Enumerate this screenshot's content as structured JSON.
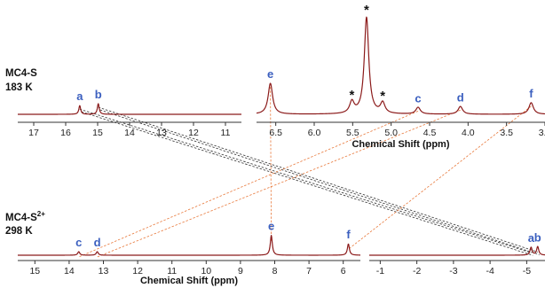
{
  "chart_data": {
    "type": "line",
    "colors": {
      "spectrum": "#8b1a1a",
      "peak_labels": "#3b5fbf",
      "guide_orange": "#e8783a",
      "guide_black": "#333333"
    },
    "xlabel": "Chemical Shift (ppm)",
    "spectra": [
      {
        "id": "mc4s-183",
        "label_main": "MC4-S",
        "label_temp": "183 K",
        "panels": [
          {
            "id": "p183a",
            "xlim": [
              17.5,
              10.5
            ],
            "ticks": [
              17,
              16,
              15,
              14,
              13,
              12,
              11
            ],
            "peaks": [
              {
                "label": "a",
                "x": 15.56,
                "y": 0.09
              },
              {
                "label": "b",
                "x": 14.98,
                "y": 0.11
              }
            ]
          },
          {
            "id": "p183b",
            "xlim": [
              6.75,
              3.0
            ],
            "ticks": [
              6.5,
              6.0,
              5.5,
              5.0,
              4.5,
              4.0,
              3.5,
              3.0
            ],
            "tick_labels": [
              "6.5",
              "6.0",
              "5.5",
              "5.0",
              "4.5",
              "4.0",
              "3.5",
              "3.0"
            ],
            "axis_title": true,
            "peaks": [
              {
                "label": "e",
                "x": 6.57,
                "y": 0.32
              },
              {
                "label": "*",
                "x": 5.51,
                "y": 0.12
              },
              {
                "label": "*",
                "x": 5.32,
                "y": 1.0
              },
              {
                "label": "*",
                "x": 5.11,
                "y": 0.11
              },
              {
                "label": "c",
                "x": 4.65,
                "y": 0.07
              },
              {
                "label": "d",
                "x": 4.1,
                "y": 0.08
              },
              {
                "label": "f",
                "x": 3.18,
                "y": 0.12
              }
            ]
          }
        ]
      },
      {
        "id": "mc4s2-298",
        "label_main": "MC4-S",
        "label_sup": "2+",
        "label_temp": "298 K",
        "panels": [
          {
            "id": "p298a",
            "xlim": [
              15.5,
              5.5
            ],
            "ticks": [
              15,
              14,
              13,
              12,
              11,
              10,
              9,
              8,
              7,
              6
            ],
            "axis_title": true,
            "peaks": [
              {
                "label": "c",
                "x": 13.72,
                "y": 0.05
              },
              {
                "label": "d",
                "x": 13.18,
                "y": 0.05
              },
              {
                "label": "e",
                "x": 8.1,
                "y": 0.28
              },
              {
                "label": "f",
                "x": 5.85,
                "y": 0.16
              }
            ]
          },
          {
            "id": "p298b",
            "xlim": [
              -0.7,
              -5.5
            ],
            "ticks": [
              -1,
              -2,
              -3,
              -4,
              -5
            ],
            "peaks": [
              {
                "label": "a",
                "x": -5.12,
                "y": 0.11
              },
              {
                "label": "b",
                "x": -5.3,
                "y": 0.12
              }
            ]
          }
        ]
      }
    ],
    "correlations": [
      {
        "from": "p183a.a",
        "to": "p298b.a",
        "color": "guide_black"
      },
      {
        "from": "p183a.b",
        "to": "p298b.b",
        "color": "guide_black"
      },
      {
        "from": "p183b.c",
        "to": "p298a.c",
        "color": "guide_orange"
      },
      {
        "from": "p183b.d",
        "to": "p298a.d",
        "color": "guide_orange"
      },
      {
        "from": "p183b.e",
        "to": "p298a.e",
        "color": "guide_orange"
      },
      {
        "from": "p183b.f",
        "to": "p298a.f",
        "color": "guide_orange"
      }
    ]
  }
}
